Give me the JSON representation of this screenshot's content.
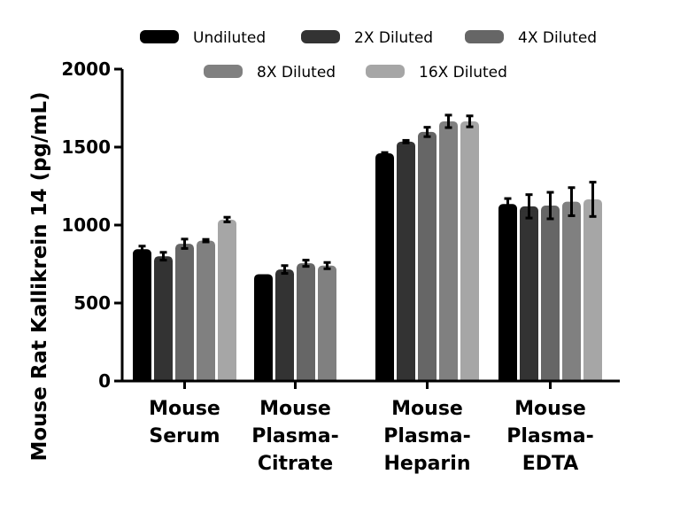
{
  "chart_data": {
    "type": "bar",
    "title": "",
    "xlabel": "",
    "ylabel": "Mouse Rat Kallikrein 14 (pg/mL)",
    "ylim": [
      0,
      2000
    ],
    "yticks": [
      0,
      500,
      1000,
      1500,
      2000
    ],
    "legend_placement": "top",
    "categories": [
      [
        "Mouse",
        "Serum"
      ],
      [
        "Mouse",
        "Plasma-",
        "Citrate"
      ],
      [
        "Mouse",
        "Plasma-",
        "Heparin"
      ],
      [
        "Mouse",
        "Plasma-",
        "EDTA"
      ]
    ],
    "series": [
      {
        "name": "Undiluted",
        "color": "#000000",
        "values": [
          845,
          685,
          1460,
          1135
        ],
        "errors": [
          20,
          0,
          5,
          35
        ]
      },
      {
        "name": "2X Diluted",
        "color": "#333333",
        "values": [
          800,
          715,
          1535,
          1120
        ],
        "errors": [
          25,
          25,
          8,
          75
        ]
      },
      {
        "name": "4X Diluted",
        "color": "#666666",
        "values": [
          880,
          755,
          1597,
          1125
        ],
        "errors": [
          30,
          20,
          30,
          85
        ]
      },
      {
        "name": "8X Diluted",
        "color": "#808080",
        "values": [
          900,
          740,
          1665,
          1150
        ],
        "errors": [
          8,
          20,
          40,
          90
        ]
      },
      {
        "name": "16X Diluted",
        "color": "#a6a6a6",
        "values": [
          1035,
          null,
          1665,
          1165
        ],
        "errors": [
          15,
          null,
          35,
          110
        ]
      }
    ]
  }
}
